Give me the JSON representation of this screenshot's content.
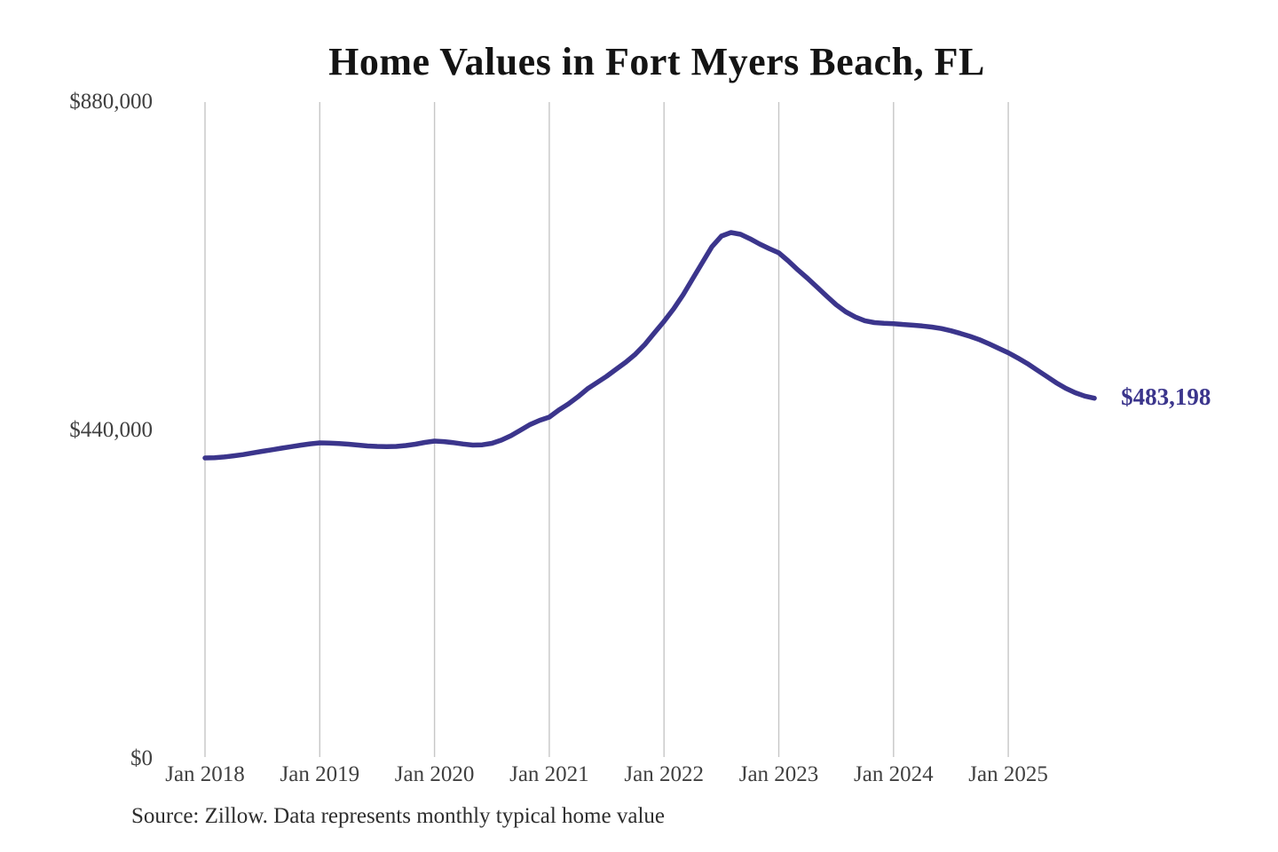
{
  "header": {
    "title": "Home Values in Fort Myers Beach, FL"
  },
  "footer": {
    "source_note": "Source: Zillow. Data represents monthly typical home value"
  },
  "chart_data": {
    "type": "line",
    "title": "Home Values in Fort Myers Beach, FL",
    "xlabel": "",
    "ylabel": "",
    "ylim": [
      0,
      880000
    ],
    "grid": "vertical-only",
    "legend": "none",
    "x_tick_labels": [
      "Jan 2018",
      "Jan 2019",
      "Jan 2020",
      "Jan 2021",
      "Jan 2022",
      "Jan 2023",
      "Jan 2024",
      "Jan 2025"
    ],
    "y_tick_labels": [
      "$0",
      "$440,000",
      "$880,000"
    ],
    "y_tick_values": [
      0,
      440000,
      880000
    ],
    "end_label": "$483,198",
    "last_value": 483198,
    "colors": {
      "line": "#3b358c",
      "grid": "#c6c6c6",
      "title": "#141414",
      "tick_text": "#404040",
      "source_text": "#2e2e2e"
    },
    "x": [
      "Jan 2018",
      "Feb 2018",
      "Mar 2018",
      "Apr 2018",
      "May 2018",
      "Jun 2018",
      "Jul 2018",
      "Aug 2018",
      "Sep 2018",
      "Oct 2018",
      "Nov 2018",
      "Dec 2018",
      "Jan 2019",
      "Feb 2019",
      "Mar 2019",
      "Apr 2019",
      "May 2019",
      "Jun 2019",
      "Jul 2019",
      "Aug 2019",
      "Sep 2019",
      "Oct 2019",
      "Nov 2019",
      "Dec 2019",
      "Jan 2020",
      "Feb 2020",
      "Mar 2020",
      "Apr 2020",
      "May 2020",
      "Jun 2020",
      "Jul 2020",
      "Aug 2020",
      "Sep 2020",
      "Oct 2020",
      "Nov 2020",
      "Dec 2020",
      "Jan 2021",
      "Feb 2021",
      "Mar 2021",
      "Apr 2021",
      "May 2021",
      "Jun 2021",
      "Jul 2021",
      "Aug 2021",
      "Sep 2021",
      "Oct 2021",
      "Nov 2021",
      "Dec 2021",
      "Jan 2022",
      "Feb 2022",
      "Mar 2022",
      "Apr 2022",
      "May 2022",
      "Jun 2022",
      "Jul 2022",
      "Aug 2022",
      "Sep 2022",
      "Oct 2022",
      "Nov 2022",
      "Dec 2022",
      "Jan 2023",
      "Feb 2023",
      "Mar 2023",
      "Apr 2023",
      "May 2023",
      "Jun 2023",
      "Jul 2023",
      "Aug 2023",
      "Sep 2023",
      "Oct 2023",
      "Nov 2023",
      "Dec 2023",
      "Jan 2024",
      "Feb 2024",
      "Mar 2024",
      "Apr 2024",
      "May 2024",
      "Jun 2024",
      "Jul 2024",
      "Aug 2024",
      "Sep 2024",
      "Oct 2024",
      "Nov 2024",
      "Dec 2024",
      "Jan 2025",
      "Feb 2025",
      "Mar 2025",
      "Apr 2025",
      "May 2025",
      "Jun 2025",
      "Jul 2025",
      "Aug 2025",
      "Sep 2025",
      "Oct 2025"
    ],
    "series": [
      {
        "name": "Monthly typical home value",
        "values": [
          403100,
          403500,
          404500,
          406000,
          407700,
          409900,
          412000,
          414100,
          416200,
          418200,
          420300,
          422100,
          423300,
          423000,
          422400,
          421600,
          420400,
          419200,
          418600,
          418300,
          418600,
          419800,
          421600,
          423900,
          425700,
          425000,
          423600,
          421800,
          420400,
          420700,
          422800,
          427000,
          433000,
          440500,
          448000,
          453500,
          457800,
          467300,
          475600,
          485100,
          495800,
          504200,
          512500,
          522000,
          531500,
          542200,
          555300,
          570800,
          586200,
          602900,
          621900,
          643300,
          664700,
          686100,
          700400,
          705200,
          702800,
          696800,
          689700,
          683700,
          678000,
          667000,
          655000,
          644000,
          632000,
          620000,
          608500,
          599000,
          592000,
          587000,
          584500,
          583500,
          583000,
          582000,
          581000,
          580000,
          578500,
          576500,
          573500,
          570000,
          566000,
          561500,
          556000,
          550000,
          544000,
          537000,
          529500,
          521000,
          512500,
          504000,
          496500,
          490500,
          486000,
          483198
        ]
      }
    ]
  }
}
